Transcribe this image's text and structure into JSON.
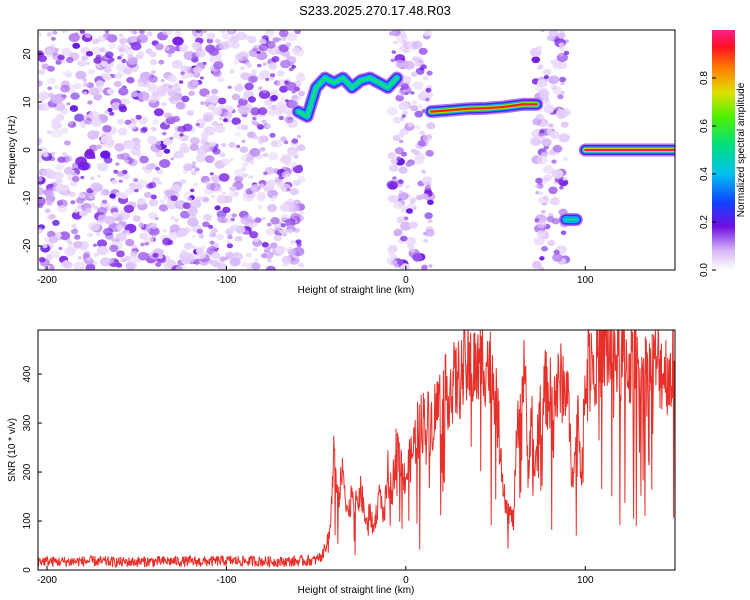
{
  "title": "S233.2025.270.17.48.R03",
  "chart_data": [
    {
      "type": "heatmap",
      "xlabel": "Height of straight line (km)",
      "ylabel": "Frequency (Hz)",
      "xlim": [
        -205,
        150
      ],
      "ylim": [
        -25,
        25
      ],
      "x_ticks": [
        -200,
        -100,
        0,
        100
      ],
      "y_ticks": [
        -20,
        -10,
        0,
        10,
        20
      ],
      "colorbar": {
        "label": "Normalized spectral amplitude",
        "range": [
          0,
          1
        ],
        "ticks": [
          0.0,
          0.2,
          0.4,
          0.6,
          0.8
        ]
      },
      "noise_bands": [
        [
          -205,
          -58
        ],
        [
          -8,
          14
        ],
        [
          72,
          90
        ]
      ],
      "ridges": [
        {
          "points": [
            [
              -60,
              8
            ],
            [
              -55,
              7
            ],
            [
              -50,
              13
            ],
            [
              -45,
              15
            ],
            [
              -40,
              14
            ],
            [
              -35,
              15
            ],
            [
              -30,
              13
            ],
            [
              -25,
              14.5
            ],
            [
              -20,
              15
            ],
            [
              -15,
              14
            ],
            [
              -10,
              13
            ],
            [
              -5,
              15
            ]
          ],
          "amplitude": 0.55
        },
        {
          "points": [
            [
              14,
              8
            ],
            [
              25,
              8.3
            ],
            [
              35,
              8.6
            ],
            [
              45,
              8.7
            ],
            [
              55,
              9
            ],
            [
              65,
              9.5
            ],
            [
              73,
              9.5
            ]
          ],
          "amplitude": 0.92
        },
        {
          "points": [
            [
              89,
              -14.5
            ],
            [
              95,
              -14.5
            ]
          ],
          "amplitude": 0.5
        },
        {
          "points": [
            [
              100,
              0
            ],
            [
              110,
              0
            ],
            [
              120,
              0
            ],
            [
              130,
              0
            ],
            [
              140,
              0
            ],
            [
              150,
              0
            ]
          ],
          "amplitude": 0.97
        }
      ],
      "colors": {
        "low": "#b48cf0",
        "mid": "#6010d0",
        "high": "#ff2040"
      }
    },
    {
      "type": "line",
      "xlabel": "Height of straight line (km)",
      "ylabel": "SNR (10 * v/v)",
      "xlim": [
        -205,
        150
      ],
      "ylim": [
        0,
        490
      ],
      "x_ticks": [
        -200,
        -100,
        0,
        100
      ],
      "y_ticks": [
        0,
        100,
        200,
        300,
        400
      ],
      "series": [
        {
          "color": "#e8302a",
          "x": [
            -205,
            -190,
            -175,
            -160,
            -145,
            -130,
            -115,
            -100,
            -85,
            -70,
            -60,
            -50,
            -45,
            -42,
            -40,
            -38,
            -35,
            -32,
            -30,
            -28,
            -25,
            -22,
            -20,
            -18,
            -15,
            -12,
            -10,
            -8,
            -5,
            -2,
            0,
            3,
            6,
            10,
            14,
            18,
            22,
            26,
            30,
            35,
            40,
            45,
            48,
            50,
            53,
            56,
            60,
            62,
            64,
            66,
            68,
            70,
            72,
            75,
            78,
            82,
            86,
            90,
            92,
            94,
            96,
            98,
            100,
            103,
            106,
            110,
            115,
            120,
            125,
            130,
            135,
            140,
            145,
            150
          ],
          "values": [
            18,
            17,
            18,
            16,
            17,
            18,
            17,
            19,
            18,
            17,
            18,
            20,
            40,
            90,
            250,
            140,
            200,
            110,
            170,
            130,
            160,
            90,
            120,
            80,
            150,
            110,
            200,
            150,
            260,
            200,
            190,
            230,
            280,
            310,
            300,
            340,
            360,
            380,
            390,
            420,
            410,
            430,
            400,
            370,
            230,
            130,
            100,
            280,
            300,
            450,
            200,
            330,
            180,
            350,
            370,
            350,
            380,
            390,
            220,
            210,
            330,
            170,
            430,
            440,
            430,
            450,
            445,
            430,
            420,
            410,
            400,
            420,
            405,
            410
          ]
        }
      ]
    }
  ]
}
